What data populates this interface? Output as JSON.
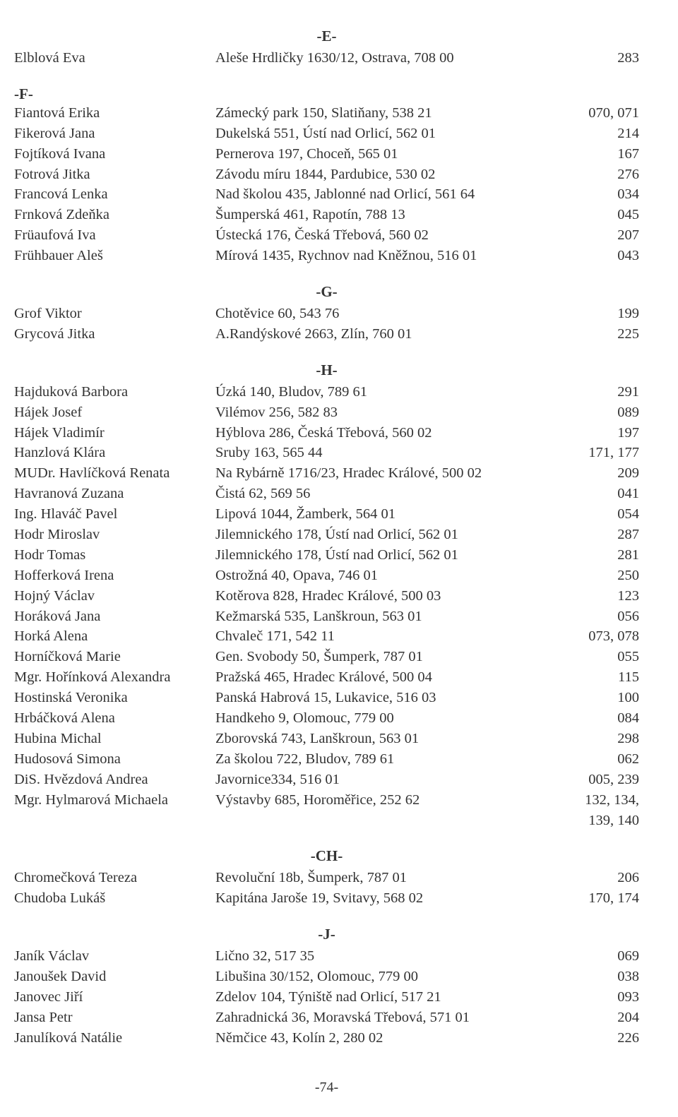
{
  "pageNumber": "-74-",
  "sections": [
    {
      "header": "-E-",
      "entries": [
        {
          "name": "Elblová Eva",
          "addr": "Aleše Hrdličky 1630/12, Ostrava, 708 00",
          "num": "283"
        }
      ]
    },
    {
      "header": "-F-",
      "headerAlign": "left",
      "entries": [
        {
          "name": "Fiantová Erika",
          "addr": "Zámecký park 150, Slatiňany, 538 21",
          "num": "070, 071"
        },
        {
          "name": "Fikerová Jana",
          "addr": "Dukelská 551, Ústí nad Orlicí, 562 01",
          "num": "214"
        },
        {
          "name": "Fojtíková Ivana",
          "addr": "Pernerova 197, Choceň, 565 01",
          "num": "167"
        },
        {
          "name": "Fotrová Jitka",
          "addr": "Závodu míru 1844, Pardubice, 530 02",
          "num": "276"
        },
        {
          "name": "Francová Lenka",
          "addr": "Nad školou 435, Jablonné nad Orlicí, 561 64",
          "num": "034"
        },
        {
          "name": "Frnková Zdeňka",
          "addr": "Šumperská 461, Rapotín, 788 13",
          "num": "045"
        },
        {
          "name": "Früaufová Iva",
          "addr": "Ústecká 176, Česká Třebová, 560 02",
          "num": "207"
        },
        {
          "name": "Frühbauer Aleš",
          "addr": "Mírová 1435, Rychnov nad Kněžnou, 516 01",
          "num": "043"
        }
      ]
    },
    {
      "header": "-G-",
      "entries": [
        {
          "name": "Grof Viktor",
          "addr": "Chotěvice 60, 543 76",
          "num": "199"
        },
        {
          "name": "Grycová Jitka",
          "addr": "A.Randýskové 2663, Zlín, 760 01",
          "num": "225"
        }
      ]
    },
    {
      "header": "-H-",
      "entries": [
        {
          "name": "Hajduková Barbora",
          "addr": "Úzká 140, Bludov, 789 61",
          "num": "291"
        },
        {
          "name": "Hájek Josef",
          "addr": "Vilémov 256, 582 83",
          "num": "089"
        },
        {
          "name": "Hájek Vladimír",
          "addr": "Hýblova 286, Česká Třebová, 560 02",
          "num": "197"
        },
        {
          "name": "Hanzlová Klára",
          "addr": "Sruby 163, 565 44",
          "num": "171, 177"
        },
        {
          "name": "MUDr. Havlíčková Renata",
          "addr": "Na Rybárně 1716/23, Hradec Králové, 500 02",
          "num": "209"
        },
        {
          "name": "Havranová Zuzana",
          "addr": "Čistá 62, 569 56",
          "num": "041"
        },
        {
          "name": "Ing. Hlaváč Pavel",
          "addr": "Lipová 1044, Žamberk, 564 01",
          "num": "054"
        },
        {
          "name": "Hodr Miroslav",
          "addr": "Jilemnického 178, Ústí nad Orlicí, 562 01",
          "num": "287"
        },
        {
          "name": "Hodr Tomas",
          "addr": "Jilemnického 178, Ústí nad Orlicí, 562 01",
          "num": "281"
        },
        {
          "name": "Hofferková Irena",
          "addr": "Ostrožná 40, Opava, 746 01",
          "num": "250"
        },
        {
          "name": "Hojný Václav",
          "addr": "Kotěrova 828, Hradec Králové, 500 03",
          "num": "123"
        },
        {
          "name": "Horáková Jana",
          "addr": "Kežmarská 535, Lanškroun, 563 01",
          "num": "056"
        },
        {
          "name": "Horká Alena",
          "addr": "Chvaleč 171, 542 11",
          "num": "073, 078"
        },
        {
          "name": "Horníčková Marie",
          "addr": "Gen. Svobody 50, Šumperk, 787 01",
          "num": "055"
        },
        {
          "name": "Mgr. Hořínková Alexandra",
          "addr": "Pražská 465, Hradec Králové, 500 04",
          "num": "115"
        },
        {
          "name": "Hostinská Veronika",
          "addr": "Panská Habrová 15, Lukavice, 516 03",
          "num": "100"
        },
        {
          "name": "Hrbáčková Alena",
          "addr": "Handkeho 9, Olomouc, 779 00",
          "num": "084"
        },
        {
          "name": "Hubina Michal",
          "addr": "Zborovská 743, Lanškroun, 563 01",
          "num": "298"
        },
        {
          "name": "Hudosová Simona",
          "addr": "Za školou 722, Bludov, 789 61",
          "num": "062"
        },
        {
          "name": "DiS. Hvězdová Andrea",
          "addr": "Javornice334, 516 01",
          "num": "005, 239"
        },
        {
          "name": "Mgr. Hylmarová Michaela",
          "addr": "Výstavby 685, Horoměřice, 252 62",
          "num": "132, 134,"
        },
        {
          "name": "",
          "addr": "",
          "num": "139, 140"
        }
      ]
    },
    {
      "header": "-CH-",
      "entries": [
        {
          "name": "Chromečková Tereza",
          "addr": "Revoluční 18b, Šumperk, 787 01",
          "num": "206"
        },
        {
          "name": "Chudoba Lukáš",
          "addr": "Kapitána Jaroše 19, Svitavy, 568 02",
          "num": "170, 174"
        }
      ]
    },
    {
      "header": "-J-",
      "entries": [
        {
          "name": "Janík Václav",
          "addr": "Lično 32, 517 35",
          "num": "069"
        },
        {
          "name": "Janoušek David",
          "addr": "Libušina 30/152, Olomouc, 779 00",
          "num": "038"
        },
        {
          "name": "Janovec Jiří",
          "addr": "Zdelov 104, Týniště nad Orlicí, 517 21",
          "num": "093"
        },
        {
          "name": "Jansa Petr",
          "addr": "Zahradnická 36, Moravská Třebová, 571 01",
          "num": "204"
        },
        {
          "name": "Janulíková Natálie",
          "addr": "Němčice 43, Kolín 2, 280 02",
          "num": "226"
        }
      ]
    }
  ]
}
